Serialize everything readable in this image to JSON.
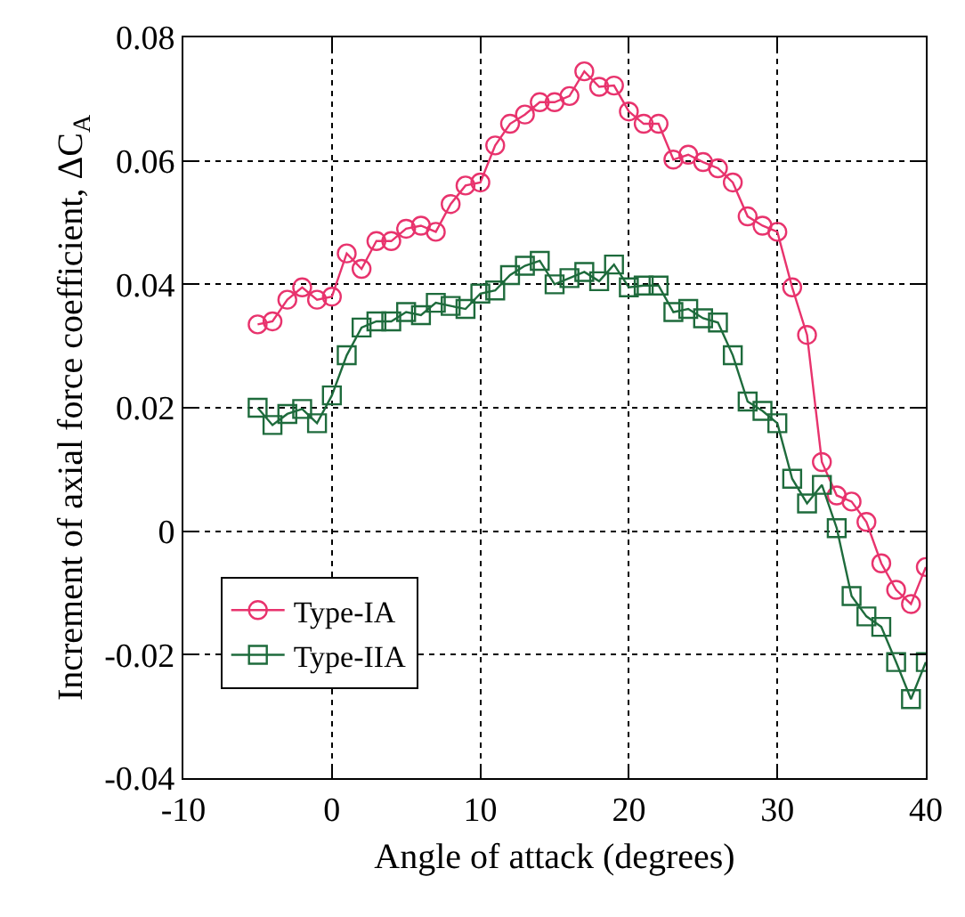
{
  "chart_data": {
    "type": "line",
    "xlabel": "Angle of attack (degrees)",
    "ylabel": "Increment of axial force coefficient, ΔC$_{A}$",
    "x": [
      -5,
      -4,
      -3,
      -2,
      -1,
      0,
      1,
      2,
      3,
      4,
      5,
      6,
      7,
      8,
      9,
      10,
      11,
      12,
      13,
      14,
      15,
      16,
      17,
      18,
      19,
      20,
      21,
      22,
      23,
      24,
      25,
      26,
      27,
      28,
      29,
      30,
      31,
      32,
      33,
      34,
      35,
      36,
      37,
      38,
      39,
      40
    ],
    "series": [
      {
        "name": "Type-IA",
        "color": "#e8336d",
        "marker": "circle",
        "values": [
          0.0335,
          0.034,
          0.0375,
          0.0395,
          0.0375,
          0.038,
          0.045,
          0.0425,
          0.047,
          0.047,
          0.049,
          0.0495,
          0.0485,
          0.053,
          0.056,
          0.0565,
          0.0625,
          0.066,
          0.0675,
          0.0695,
          0.0695,
          0.0705,
          0.0745,
          0.072,
          0.0722,
          0.068,
          0.066,
          0.066,
          0.0602,
          0.061,
          0.0598,
          0.0588,
          0.0565,
          0.051,
          0.0495,
          0.0485,
          0.0395,
          0.0318,
          0.0112,
          0.0058,
          0.0048,
          0.0015,
          -0.0052,
          -0.0095,
          -0.0118,
          -0.0058
        ]
      },
      {
        "name": "Type-IIA",
        "color": "#1e6b3c",
        "marker": "square",
        "values": [
          0.02,
          0.0172,
          0.019,
          0.0198,
          0.0175,
          0.022,
          0.0285,
          0.033,
          0.034,
          0.034,
          0.0355,
          0.035,
          0.037,
          0.0365,
          0.036,
          0.0385,
          0.039,
          0.0415,
          0.043,
          0.0438,
          0.04,
          0.041,
          0.042,
          0.0405,
          0.0432,
          0.0395,
          0.0398,
          0.0398,
          0.0355,
          0.036,
          0.0345,
          0.0338,
          0.0285,
          0.021,
          0.0195,
          0.0175,
          0.0085,
          0.0045,
          0.0075,
          0.0005,
          -0.0105,
          -0.0138,
          -0.0155,
          -0.0212,
          -0.0272,
          -0.0212
        ]
      }
    ],
    "xlim": [
      -10,
      40
    ],
    "xticks": [
      -10,
      0,
      10,
      20,
      30,
      40
    ],
    "ylim": [
      -0.04,
      0.08
    ],
    "yticks": [
      -0.04,
      -0.02,
      0,
      0.02,
      0.04,
      0.06,
      0.08
    ],
    "grid": true,
    "legend": "bottom left",
    "line_style": "solid"
  }
}
